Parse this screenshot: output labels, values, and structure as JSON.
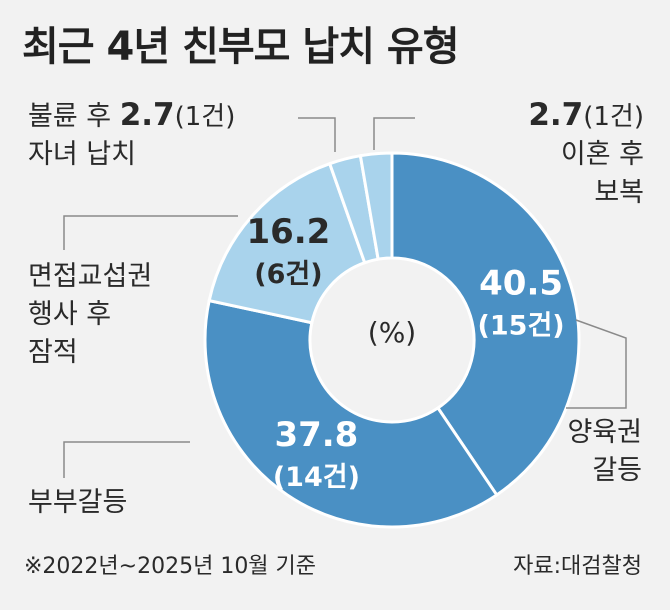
{
  "title": "최근 4년 친부모 납치 유형",
  "center_label": "(%)",
  "footnote": "※2022년~2025년 10월 기준",
  "source": "자료:대검찰청",
  "colors": {
    "dark": "#4a90c4",
    "light": "#a9d3ec",
    "stroke": "#ffffff",
    "leader": "#8a8a8a",
    "inner_text": "#ffffff",
    "light_text": "#2a2a2a"
  },
  "chart_data": {
    "type": "pie",
    "donut": true,
    "unit": "%",
    "slices": [
      {
        "category": "양육권 갈등",
        "value": 40.5,
        "value_label": "40.5",
        "count_label": "(15건)"
      },
      {
        "category": "부부갈등",
        "value": 37.8,
        "value_label": "37.8",
        "count_label": "(14건)"
      },
      {
        "category": "면접교섭권 행사 후 잠적",
        "value": 16.2,
        "value_label": "16.2",
        "count_label": "(6건)"
      },
      {
        "category": "불륜 후 자녀 납치",
        "value": 2.7,
        "value_label": "2.7",
        "count_label": "(1건)"
      },
      {
        "category": "이혼 후 보복",
        "value": 2.7,
        "value_label": "2.7",
        "count_label": "(1건)"
      }
    ]
  },
  "labels": {
    "affair_line1": "불륜 후",
    "affair_line2": "자녀 납치",
    "affair_value": "2.7",
    "affair_count": "(1건)",
    "divorce_value": "2.7",
    "divorce_count": "(1건)",
    "divorce_line1": "이혼 후",
    "divorce_line2": "보복",
    "visit_line1": "면접교섭권",
    "visit_line2": "행사 후",
    "visit_line3": "잠적",
    "custody_line1": "양육권",
    "custody_line2": "갈등",
    "couple_line1": "부부갈등"
  }
}
